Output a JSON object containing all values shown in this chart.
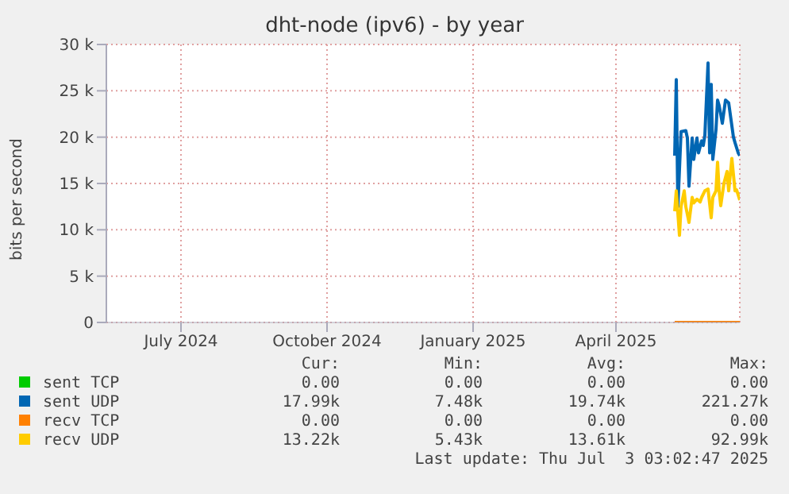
{
  "chart_data": {
    "type": "line",
    "title": "dht-node (ipv6) - by year",
    "ylabel": "bits per second",
    "xlim": [
      "2024-05-30",
      "2025-07-03"
    ],
    "xticks": [
      {
        "value": "2024-07-16",
        "label": "July 2024"
      },
      {
        "value": "2024-10-16",
        "label": "October 2024"
      },
      {
        "value": "2025-01-16",
        "label": "January 2025"
      },
      {
        "value": "2025-04-16",
        "label": "April 2025"
      }
    ],
    "ylim": [
      0,
      30000
    ],
    "yticks": [
      0,
      {
        "value": 5000,
        "label": "5 k"
      },
      {
        "value": 10000,
        "label": "10 k"
      },
      {
        "value": 15000,
        "label": "15 k"
      },
      {
        "value": 20000,
        "label": "20 k"
      },
      {
        "value": 25000,
        "label": "25 k"
      },
      {
        "value": 30000,
        "label": "30 k"
      }
    ],
    "grid": true,
    "legend": "bottom",
    "marker": "none",
    "line_style": "solid",
    "series": [
      {
        "name": "sent TCP",
        "color": "#00cc00"
      },
      {
        "name": "sent UDP",
        "color": "#0066b3",
        "x": [
          "2025-05-23",
          "2025-05-24",
          "2025-05-25",
          "2025-05-27",
          "2025-05-30",
          "2025-05-31",
          "2025-06-01",
          "2025-06-03",
          "2025-06-04",
          "2025-06-06",
          "2025-06-07",
          "2025-06-09",
          "2025-06-10",
          "2025-06-11",
          "2025-06-13",
          "2025-06-14",
          "2025-06-15",
          "2025-06-16",
          "2025-06-18",
          "2025-06-19",
          "2025-06-20",
          "2025-06-22",
          "2025-06-24",
          "2025-06-26",
          "2025-06-29",
          "2025-06-30",
          "2025-07-02",
          "2025-07-03"
        ],
        "values": [
          18000,
          26200,
          12500,
          20600,
          20700,
          19900,
          14700,
          19900,
          17600,
          19900,
          18300,
          19600,
          19100,
          20200,
          28000,
          18300,
          25700,
          17600,
          20800,
          24000,
          23400,
          21500,
          24000,
          23700,
          20000,
          19400,
          18300,
          18000
        ]
      },
      {
        "name": "recv TCP",
        "color": "#ff8000",
        "x": [
          "2025-05-23",
          "2025-07-03"
        ],
        "values": [
          0,
          0
        ]
      },
      {
        "name": "recv UDP",
        "color": "#ffcc00",
        "x": [
          "2025-05-23",
          "2025-05-24",
          "2025-05-26",
          "2025-05-27",
          "2025-05-29",
          "2025-05-30",
          "2025-06-01",
          "2025-06-03",
          "2025-06-04",
          "2025-06-06",
          "2025-06-08",
          "2025-06-09",
          "2025-06-11",
          "2025-06-13",
          "2025-06-15",
          "2025-06-16",
          "2025-06-18",
          "2025-06-19",
          "2025-06-20",
          "2025-06-21",
          "2025-06-23",
          "2025-06-25",
          "2025-06-26",
          "2025-06-28",
          "2025-06-30",
          "2025-07-01",
          "2025-07-03"
        ],
        "values": [
          12000,
          14200,
          9400,
          12500,
          14200,
          12500,
          10800,
          13500,
          12900,
          13300,
          13000,
          13500,
          14200,
          14400,
          11300,
          13500,
          14200,
          17300,
          14200,
          12600,
          15000,
          16300,
          14200,
          17700,
          14200,
          14300,
          13200
        ]
      }
    ],
    "annotations": [
      "Cur:",
      "Min:",
      "Avg:",
      "Max:",
      "0.00",
      "0.00",
      "0.00",
      "0.00",
      "17.99k",
      "7.48k",
      "19.74k",
      "221.27k",
      "0.00",
      "0.00",
      "0.00",
      "0.00",
      "13.22k",
      "5.43k",
      "13.61k",
      "92.99k",
      "Last update: Thu Jul  3 03:02:47 2025"
    ]
  }
}
